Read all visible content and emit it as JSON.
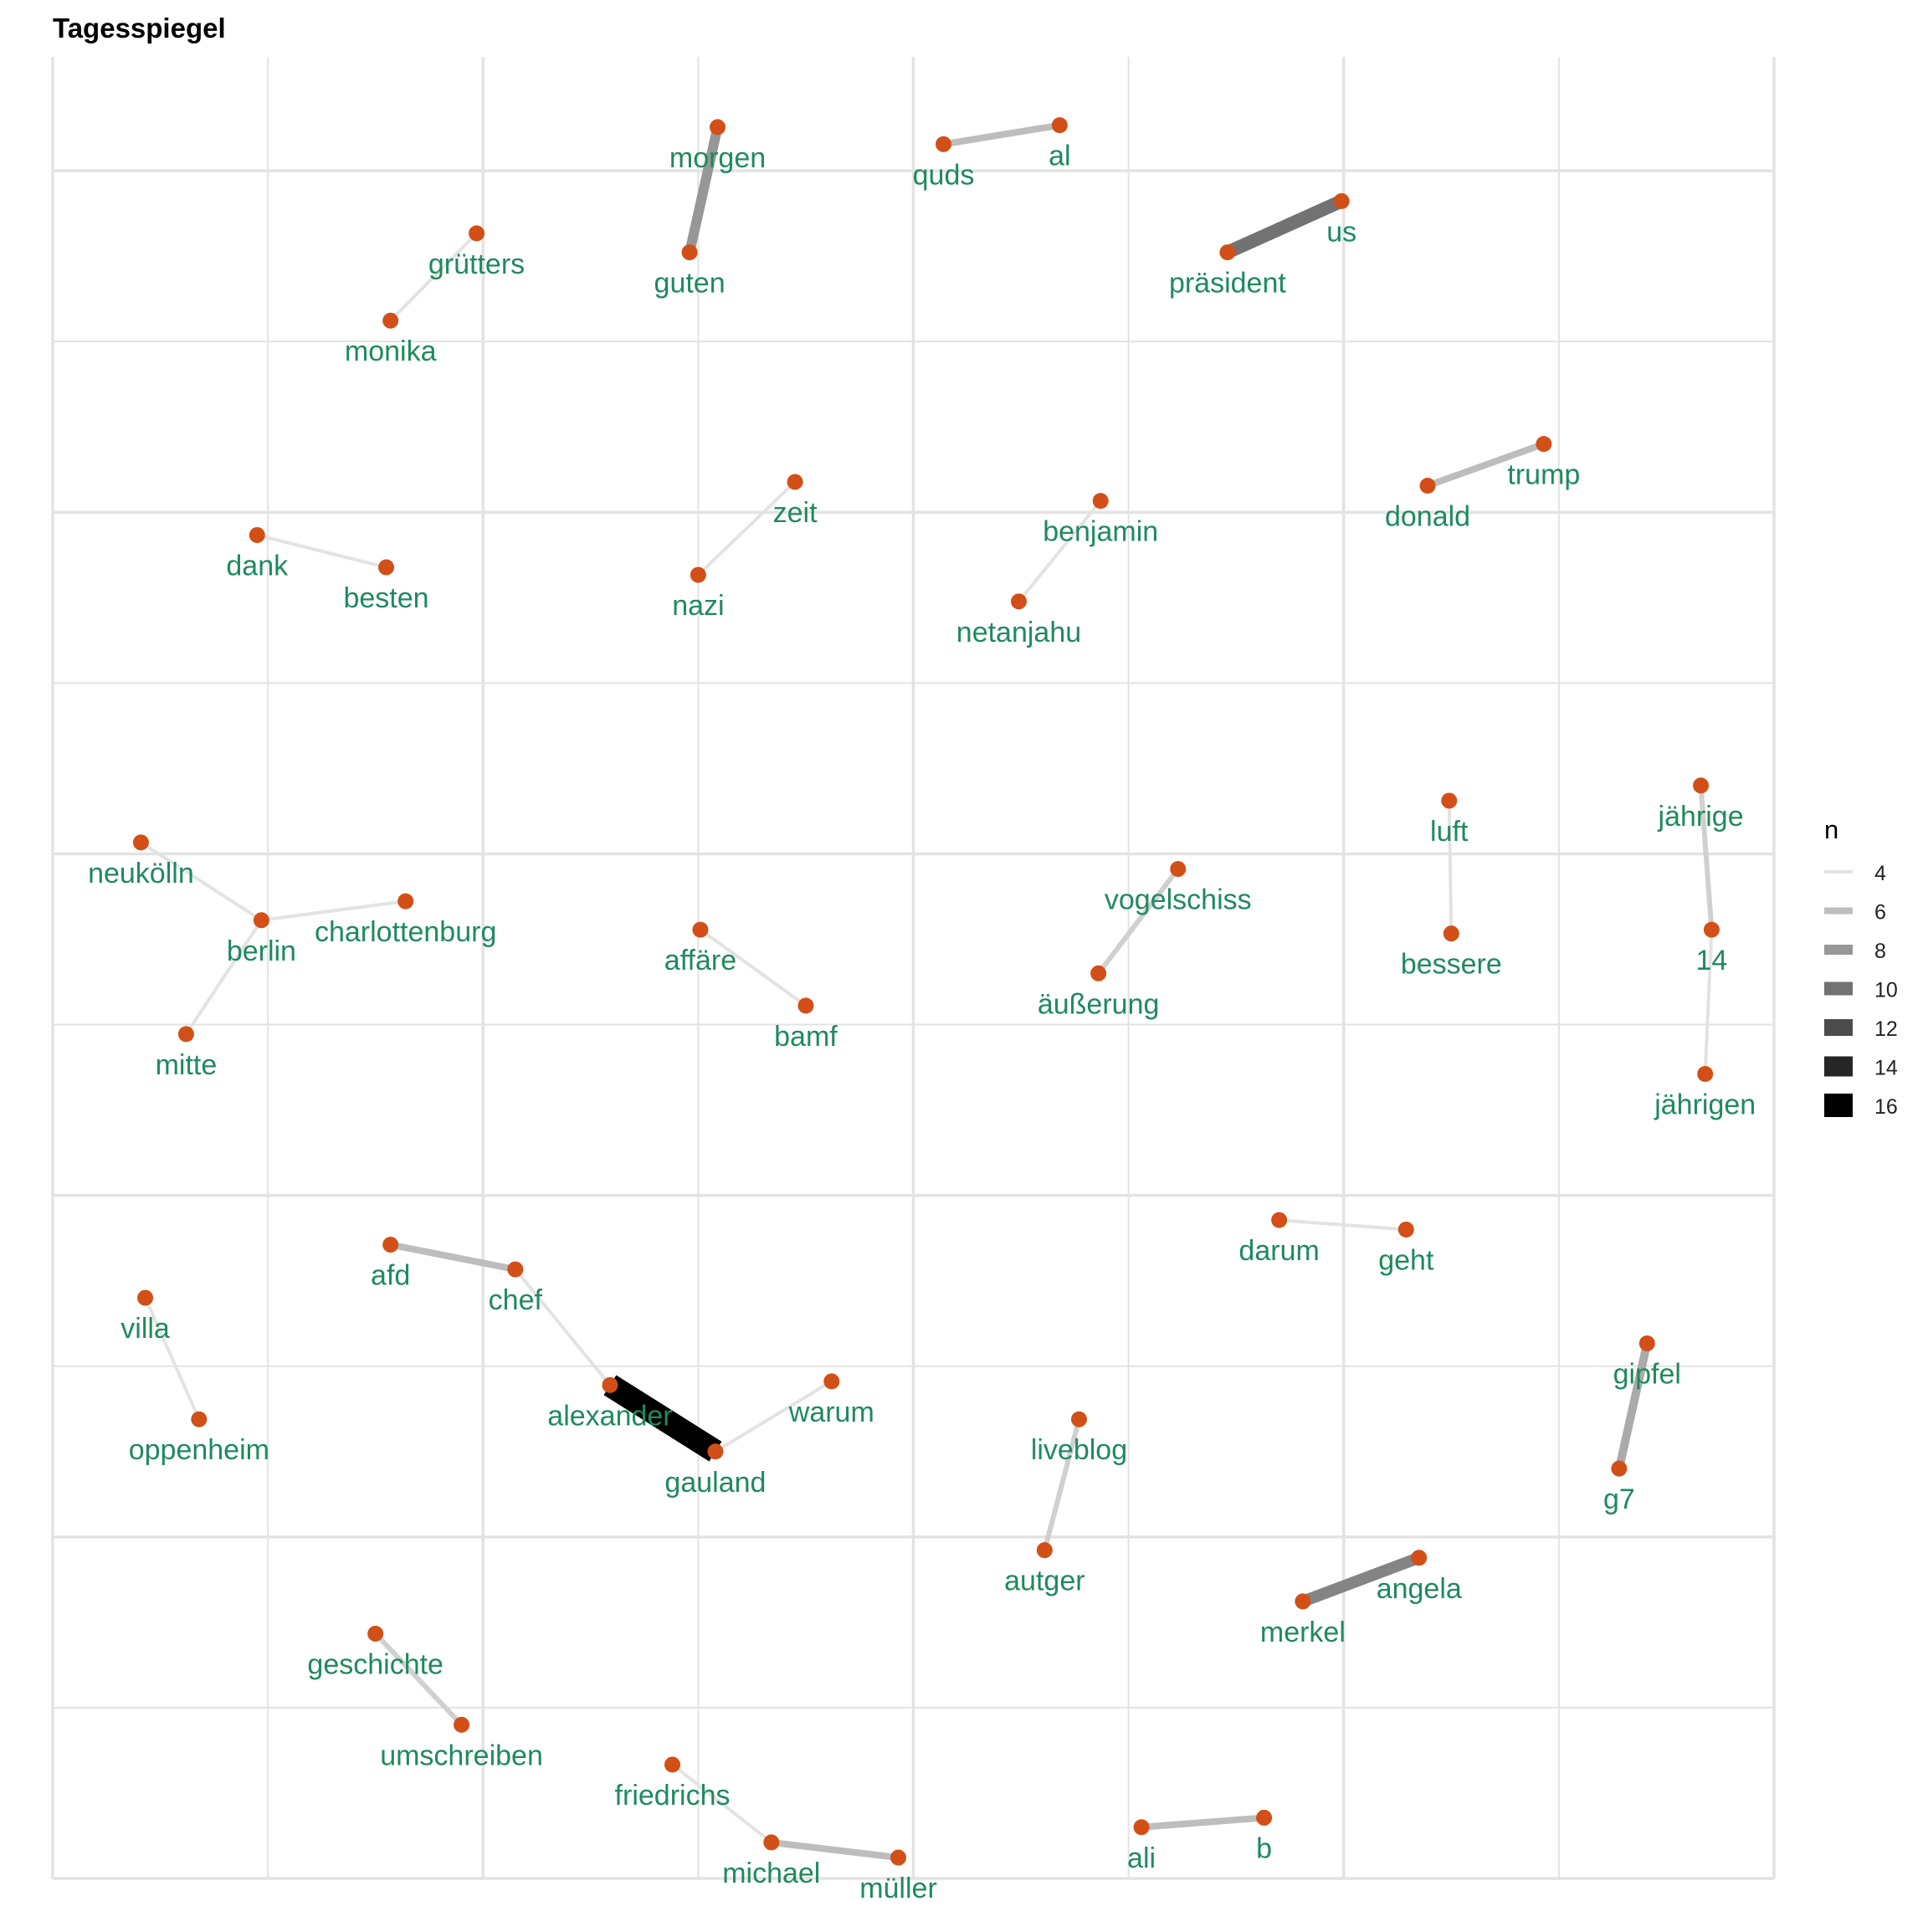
{
  "chart_data": {
    "type": "network",
    "title": "Tagesspiegel",
    "legend": {
      "title": "n",
      "position": "right",
      "entries": [
        4,
        6,
        8,
        10,
        12,
        14,
        16
      ]
    },
    "axes": {
      "grid": true,
      "tick_labels": false,
      "xlim": [
        0,
        8
      ],
      "ylim": [
        0,
        9.6
      ]
    },
    "style": {
      "node_color": "#d24f17",
      "label_color": "#1f8a5e",
      "grid_color": "#e3e3e3",
      "edge_light": "#e3e3e3",
      "edge_dark": "#000000"
    },
    "nodes": [
      {
        "id": "morgen",
        "x": 3.09,
        "y": 9.23
      },
      {
        "id": "guten",
        "x": 2.96,
        "y": 8.57
      },
      {
        "id": "quds",
        "x": 4.14,
        "y": 9.14
      },
      {
        "id": "al",
        "x": 4.68,
        "y": 9.24
      },
      {
        "id": "us",
        "x": 5.99,
        "y": 8.84
      },
      {
        "id": "präsident",
        "x": 5.46,
        "y": 8.57
      },
      {
        "id": "grütters",
        "x": 1.97,
        "y": 8.67
      },
      {
        "id": "monika",
        "x": 1.57,
        "y": 8.21
      },
      {
        "id": "trump",
        "x": 6.93,
        "y": 7.56
      },
      {
        "id": "donald",
        "x": 6.39,
        "y": 7.34
      },
      {
        "id": "zeit",
        "x": 3.45,
        "y": 7.36
      },
      {
        "id": "nazi",
        "x": 3.0,
        "y": 6.87
      },
      {
        "id": "benjamin",
        "x": 4.87,
        "y": 7.26
      },
      {
        "id": "netanjahu",
        "x": 4.49,
        "y": 6.73
      },
      {
        "id": "dank",
        "x": 0.95,
        "y": 7.08
      },
      {
        "id": "besten",
        "x": 1.55,
        "y": 6.91
      },
      {
        "id": "luft",
        "x": 6.49,
        "y": 5.68
      },
      {
        "id": "bessere",
        "x": 6.5,
        "y": 4.98
      },
      {
        "id": "jährige",
        "x": 7.66,
        "y": 5.76
      },
      {
        "id": "14",
        "x": 7.71,
        "y": 5.0
      },
      {
        "id": "jährigen",
        "x": 7.68,
        "y": 4.24
      },
      {
        "id": "neukölln",
        "x": 0.41,
        "y": 5.46
      },
      {
        "id": "berlin",
        "x": 0.97,
        "y": 5.05
      },
      {
        "id": "charlottenburg",
        "x": 1.64,
        "y": 5.15
      },
      {
        "id": "mitte",
        "x": 0.62,
        "y": 4.45
      },
      {
        "id": "affäre",
        "x": 3.01,
        "y": 5.0
      },
      {
        "id": "bamf",
        "x": 3.5,
        "y": 4.6
      },
      {
        "id": "vogelschiss",
        "x": 5.23,
        "y": 5.32
      },
      {
        "id": "äußerung",
        "x": 4.86,
        "y": 4.77
      },
      {
        "id": "darum",
        "x": 5.7,
        "y": 3.47
      },
      {
        "id": "geht",
        "x": 6.29,
        "y": 3.42
      },
      {
        "id": "afd",
        "x": 1.57,
        "y": 3.34
      },
      {
        "id": "chef",
        "x": 2.15,
        "y": 3.21
      },
      {
        "id": "alexander",
        "x": 2.59,
        "y": 2.6
      },
      {
        "id": "gauland",
        "x": 3.08,
        "y": 2.25
      },
      {
        "id": "warum",
        "x": 3.62,
        "y": 2.62
      },
      {
        "id": "villa",
        "x": 0.43,
        "y": 3.06
      },
      {
        "id": "oppenheim",
        "x": 0.68,
        "y": 2.42
      },
      {
        "id": "gipfel",
        "x": 7.41,
        "y": 2.82
      },
      {
        "id": "g7",
        "x": 7.28,
        "y": 2.16
      },
      {
        "id": "liveblog",
        "x": 4.77,
        "y": 2.42
      },
      {
        "id": "autger",
        "x": 4.61,
        "y": 1.73
      },
      {
        "id": "angela",
        "x": 6.35,
        "y": 1.69
      },
      {
        "id": "merkel",
        "x": 5.81,
        "y": 1.46
      },
      {
        "id": "geschichte",
        "x": 1.5,
        "y": 1.29
      },
      {
        "id": "umschreiben",
        "x": 1.9,
        "y": 0.81
      },
      {
        "id": "friedrichs",
        "x": 2.88,
        "y": 0.6
      },
      {
        "id": "michael",
        "x": 3.34,
        "y": 0.19
      },
      {
        "id": "müller",
        "x": 3.93,
        "y": 0.11
      },
      {
        "id": "ali",
        "x": 5.06,
        "y": 0.27
      },
      {
        "id": "b",
        "x": 5.63,
        "y": 0.32
      }
    ],
    "edges": [
      {
        "from": "guten",
        "to": "morgen",
        "n": 8
      },
      {
        "from": "quds",
        "to": "al",
        "n": 6
      },
      {
        "from": "präsident",
        "to": "us",
        "n": 10
      },
      {
        "from": "monika",
        "to": "grütters",
        "n": 4
      },
      {
        "from": "donald",
        "to": "trump",
        "n": 6
      },
      {
        "from": "nazi",
        "to": "zeit",
        "n": 4
      },
      {
        "from": "netanjahu",
        "to": "benjamin",
        "n": 4
      },
      {
        "from": "dank",
        "to": "besten",
        "n": 4
      },
      {
        "from": "bessere",
        "to": "luft",
        "n": 4
      },
      {
        "from": "jährige",
        "to": "14",
        "n": 5
      },
      {
        "from": "14",
        "to": "jährigen",
        "n": 4
      },
      {
        "from": "neukölln",
        "to": "berlin",
        "n": 4
      },
      {
        "from": "berlin",
        "to": "charlottenburg",
        "n": 4
      },
      {
        "from": "berlin",
        "to": "mitte",
        "n": 4
      },
      {
        "from": "affäre",
        "to": "bamf",
        "n": 4
      },
      {
        "from": "äußerung",
        "to": "vogelschiss",
        "n": 5
      },
      {
        "from": "darum",
        "to": "geht",
        "n": 4
      },
      {
        "from": "afd",
        "to": "chef",
        "n": 6
      },
      {
        "from": "chef",
        "to": "alexander",
        "n": 4
      },
      {
        "from": "alexander",
        "to": "gauland",
        "n": 16
      },
      {
        "from": "gauland",
        "to": "warum",
        "n": 4
      },
      {
        "from": "villa",
        "to": "oppenheim",
        "n": 4
      },
      {
        "from": "g7",
        "to": "gipfel",
        "n": 7
      },
      {
        "from": "autger",
        "to": "liveblog",
        "n": 5
      },
      {
        "from": "merkel",
        "to": "angela",
        "n": 9
      },
      {
        "from": "geschichte",
        "to": "umschreiben",
        "n": 5
      },
      {
        "from": "friedrichs",
        "to": "michael",
        "n": 4
      },
      {
        "from": "michael",
        "to": "müller",
        "n": 6
      },
      {
        "from": "ali",
        "to": "b",
        "n": 6
      }
    ]
  }
}
